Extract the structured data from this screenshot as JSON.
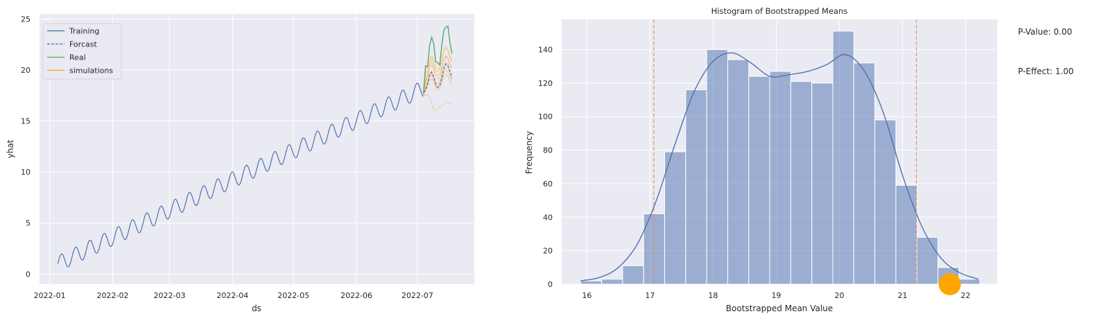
{
  "chart_data": [
    {
      "type": "line",
      "xlabel": "ds",
      "ylabel": "yhat",
      "xlim": [
        "2021-12-27",
        "2022-07-29"
      ],
      "ylim": [
        -1,
        25.5
      ],
      "x_ticks": [
        "2022-01",
        "2022-02",
        "2022-03",
        "2022-04",
        "2022-05",
        "2022-06",
        "2022-07"
      ],
      "y_ticks": [
        0,
        5,
        10,
        15,
        20,
        25
      ],
      "grid": true,
      "legend": {
        "placement": "top-left",
        "entries": [
          "Training",
          "Forcast",
          "Real",
          "simulations"
        ]
      },
      "colors": {
        "training": "#4c72b0",
        "forecast": "#4c72b0",
        "real": "#55a868",
        "simulations": "#ff9f1c"
      },
      "series": [
        {
          "name": "Training",
          "style": "solid",
          "description_x": "daily from 2022-01-05 to 2022-07-04",
          "x_start": "2022-01-05",
          "x_end": "2022-07-04",
          "trend_start": 1.0,
          "trend_end": 18.2,
          "weekly_amplitude": 0.8
        },
        {
          "name": "Forcast",
          "style": "dashed",
          "x": [
            "2022-07-04",
            "2022-07-05",
            "2022-07-06",
            "2022-07-07",
            "2022-07-08",
            "2022-07-09",
            "2022-07-10",
            "2022-07-11",
            "2022-07-12",
            "2022-07-13",
            "2022-07-14",
            "2022-07-15",
            "2022-07-16",
            "2022-07-17",
            "2022-07-18"
          ],
          "y": [
            17.8,
            18.0,
            18.6,
            19.5,
            19.8,
            19.3,
            18.6,
            18.3,
            18.5,
            19.2,
            20.1,
            20.6,
            20.4,
            19.8,
            19.2
          ]
        },
        {
          "name": "Real",
          "style": "solid",
          "x": [
            "2022-07-04",
            "2022-07-05",
            "2022-07-06",
            "2022-07-07",
            "2022-07-08",
            "2022-07-09",
            "2022-07-10",
            "2022-07-11",
            "2022-07-12",
            "2022-07-13",
            "2022-07-14",
            "2022-07-15",
            "2022-07-16",
            "2022-07-17",
            "2022-07-18"
          ],
          "y": [
            17.7,
            20.4,
            20.3,
            22.4,
            23.2,
            22.6,
            20.8,
            20.7,
            20.5,
            22.4,
            23.9,
            24.2,
            24.3,
            22.7,
            21.6
          ]
        },
        {
          "name": "simulations",
          "style": "thin",
          "x": [
            "2022-07-04",
            "2022-07-05",
            "2022-07-06",
            "2022-07-07",
            "2022-07-08",
            "2022-07-09",
            "2022-07-10",
            "2022-07-11",
            "2022-07-12",
            "2022-07-13",
            "2022-07-14",
            "2022-07-15",
            "2022-07-16",
            "2022-07-17",
            "2022-07-18"
          ],
          "paths": [
            [
              17.9,
              19.5,
              20.2,
              21.0,
              21.4,
              21.0,
              20.3,
              20.0,
              20.2,
              21.0,
              21.8,
              22.1,
              21.9,
              21.2,
              20.8
            ],
            [
              18.0,
              19.0,
              19.6,
              20.4,
              20.8,
              20.3,
              19.7,
              19.4,
              19.6,
              20.3,
              21.0,
              21.4,
              21.2,
              20.6,
              20.2
            ],
            [
              17.6,
              18.6,
              19.3,
              20.2,
              20.5,
              20.0,
              19.4,
              19.1,
              19.3,
              20.1,
              20.9,
              21.3,
              21.1,
              20.5,
              20.1
            ],
            [
              17.5,
              18.0,
              18.4,
              19.0,
              19.2,
              18.8,
              18.3,
              18.0,
              18.2,
              18.8,
              19.4,
              19.6,
              19.4,
              18.9,
              18.5
            ],
            [
              17.9,
              18.3,
              18.7,
              19.3,
              19.6,
              19.1,
              18.5,
              18.2,
              18.4,
              19.0,
              19.7,
              20.1,
              19.8,
              19.3,
              18.9
            ],
            [
              17.4,
              17.6,
              17.5,
              17.3,
              16.8,
              16.1,
              16.0,
              16.2,
              16.4,
              16.5,
              16.6,
              16.9,
              16.8,
              16.8,
              16.7
            ],
            [
              17.8,
              18.8,
              19.5,
              20.7,
              21.2,
              20.6,
              19.9,
              19.8,
              20.0,
              20.9,
              21.9,
              22.3,
              22.0,
              21.3,
              21.0
            ],
            [
              17.7,
              18.2,
              18.9,
              19.6,
              19.9,
              19.4,
              18.8,
              18.6,
              18.9,
              19.6,
              20.4,
              20.7,
              20.6,
              20.0,
              19.5
            ]
          ]
        }
      ]
    },
    {
      "type": "bar",
      "title": "Histogram of Bootstrapped Means",
      "xlabel": "Bootstrapped Mean Value",
      "ylabel": "Frequency",
      "xlim": [
        15.6,
        22.5
      ],
      "ylim": [
        0,
        158
      ],
      "x_ticks": [
        16,
        17,
        18,
        19,
        20,
        21,
        22
      ],
      "y_ticks": [
        0,
        20,
        40,
        60,
        80,
        100,
        120,
        140
      ],
      "grid": true,
      "bin_start": 15.9,
      "bin_width": 0.333,
      "counts": [
        2,
        3,
        11,
        42,
        79,
        116,
        140,
        134,
        124,
        127,
        121,
        120,
        151,
        132,
        98,
        59,
        28,
        10,
        3
      ],
      "kde": {
        "x": [
          15.9,
          16.2,
          16.5,
          16.8,
          17.1,
          17.4,
          17.7,
          18.0,
          18.3,
          18.6,
          18.9,
          19.2,
          19.5,
          19.8,
          20.1,
          20.4,
          20.7,
          21.0,
          21.3,
          21.6,
          21.9,
          22.2
        ],
        "y": [
          2,
          4,
          10,
          24,
          50,
          84,
          115,
          133,
          138,
          132,
          124,
          125,
          127,
          131,
          137,
          127,
          102,
          65,
          35,
          16,
          7,
          3
        ]
      },
      "vlines": [
        17.06,
        21.22
      ],
      "marker": {
        "x": 21.75,
        "y": 0
      },
      "colors": {
        "bars": "#4c72b0",
        "kde": "#4c72b0",
        "vlines": "#dd8452",
        "marker": "#ffa500"
      }
    }
  ],
  "annotations": {
    "p_value": "P-Value: 0.00",
    "p_effect": "P-Effect: 1.00"
  }
}
